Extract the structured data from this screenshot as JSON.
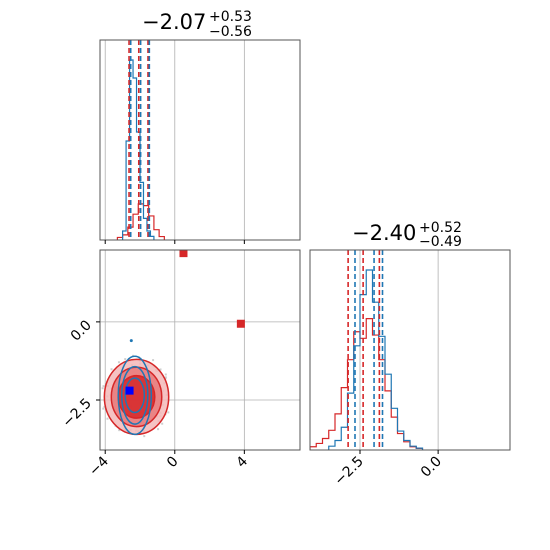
{
  "chart_data": {
    "type": "corner",
    "grid": true,
    "colors": {
      "posterior_a": "#d62728",
      "posterior_b": "#1f77b4",
      "truth_marker": "#0000ff"
    },
    "param1": {
      "title": {
        "median": "−2.07",
        "plus": "+0.53",
        "minus": "−0.56"
      },
      "axis_range": [
        -4.3,
        7.2
      ],
      "ticks": [
        -4,
        0,
        4
      ],
      "tick_labels": [
        "−4",
        "0",
        "4"
      ],
      "red_hist": {
        "edges": [
          -3.3,
          -3.0,
          -2.7,
          -2.4,
          -2.1,
          -1.8,
          -1.5,
          -1.2,
          -0.9,
          -0.6
        ],
        "counts": [
          0.03,
          0.06,
          0.15,
          0.3,
          0.42,
          0.4,
          0.28,
          0.12,
          0.04
        ]
      },
      "blue_hist": {
        "edges": [
          -3.0,
          -2.8,
          -2.6,
          -2.4,
          -2.2,
          -2.0,
          -1.8,
          -1.6,
          -1.4,
          -1.2
        ],
        "counts": [
          0.05,
          0.55,
          1.0,
          0.9,
          0.6,
          0.32,
          0.12,
          0.05,
          0.02
        ]
      },
      "red_quantiles": [
        -2.63,
        -2.07,
        -1.54
      ],
      "blue_quantiles": [
        -2.62,
        -2.05,
        -1.55
      ]
    },
    "param2": {
      "title": {
        "median": "−2.40",
        "plus": "+0.52",
        "minus": "−0.49"
      },
      "axis_range": [
        -4.1,
        2.3
      ],
      "ticks": [
        -2.5,
        0.0
      ],
      "tick_labels": [
        "−2.5",
        "0.0"
      ],
      "red_hist": {
        "edges": [
          -4.1,
          -3.9,
          -3.7,
          -3.5,
          -3.3,
          -3.1,
          -2.9,
          -2.7,
          -2.5,
          -2.3,
          -2.1,
          -1.9,
          -1.7,
          -1.5,
          -1.3,
          -1.1,
          -0.9,
          -0.7,
          -0.5
        ],
        "counts": [
          0.02,
          0.04,
          0.07,
          0.12,
          0.22,
          0.38,
          0.55,
          0.72,
          0.68,
          0.8,
          0.7,
          0.55,
          0.36,
          0.2,
          0.1,
          0.05,
          0.02,
          0.01
        ]
      },
      "blue_hist": {
        "edges": [
          -3.5,
          -3.3,
          -3.1,
          -2.9,
          -2.7,
          -2.5,
          -2.3,
          -2.1,
          -1.9,
          -1.7,
          -1.5,
          -1.3,
          -1.1,
          -0.9,
          -0.7,
          -0.5
        ],
        "counts": [
          0.02,
          0.05,
          0.12,
          0.3,
          0.55,
          0.82,
          0.95,
          0.78,
          0.6,
          0.4,
          0.22,
          0.1,
          0.05,
          0.02,
          0.01
        ]
      },
      "red_quantiles": [
        -2.88,
        -2.4,
        -1.88
      ],
      "blue_quantiles": [
        -2.66,
        -2.05,
        -1.78
      ]
    },
    "joint": {
      "x_range": [
        -4.3,
        7.2
      ],
      "y_range": [
        -4.1,
        2.3
      ],
      "red_center": [
        -2.2,
        -2.4
      ],
      "red_levels_sigma": [
        [
          1.05,
          0.68
        ],
        [
          1.45,
          0.95
        ],
        [
          1.85,
          1.2
        ]
      ],
      "blue_center": [
        -2.3,
        -2.35
      ],
      "blue_levels_sigma": [
        [
          0.55,
          0.55
        ],
        [
          0.75,
          0.92
        ],
        [
          0.95,
          1.25
        ]
      ],
      "truth_point": [
        -2.6,
        -2.2
      ],
      "outlier_points": [
        [
          3.8,
          -0.06
        ],
        [
          0.5,
          2.2
        ]
      ],
      "blue_scatter_extra": [
        [
          -2.5,
          -0.6
        ]
      ]
    }
  }
}
